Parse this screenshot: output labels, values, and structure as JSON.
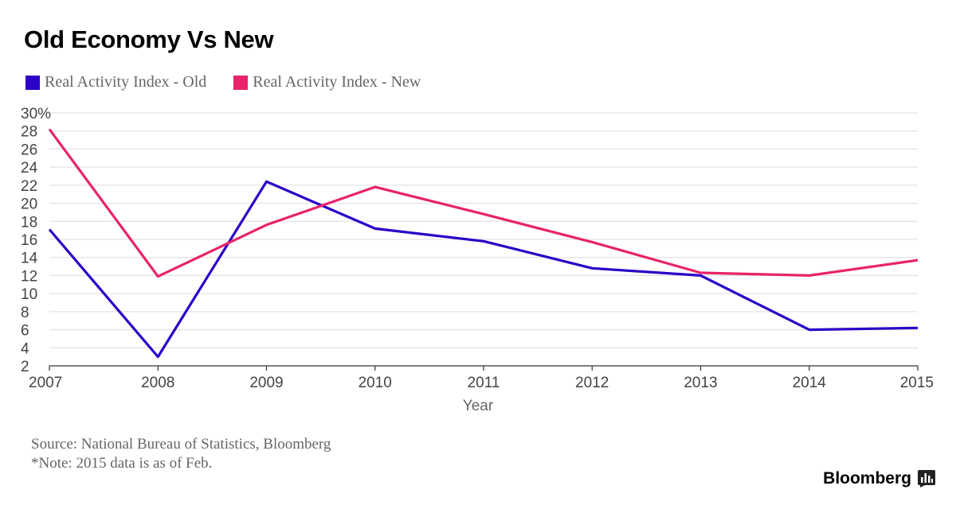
{
  "title": "Old Economy Vs New",
  "legend": [
    {
      "label": "Real Activity Index - Old",
      "color": "#2b00c8"
    },
    {
      "label": "Real Activity Index - New",
      "color": "#e8236b"
    }
  ],
  "source_lines": [
    "Source: National Bureau of Statistics, Bloomberg",
    "*Note: 2015 data is as of Feb."
  ],
  "brand": "Bloomberg",
  "chart_data": {
    "type": "line",
    "title": "Old Economy Vs New",
    "xlabel": "Year",
    "ylabel": "",
    "x": [
      "2007",
      "2008",
      "2009",
      "2010",
      "2011",
      "2012",
      "2013",
      "2014",
      "2015"
    ],
    "ylim": [
      2,
      30
    ],
    "y_ticks": [
      "30%",
      "28",
      "26",
      "24",
      "22",
      "20",
      "18",
      "16",
      "14",
      "12",
      "10",
      "8",
      "6",
      "4",
      "2"
    ],
    "y_tick_values": [
      30,
      28,
      26,
      24,
      22,
      20,
      18,
      16,
      14,
      12,
      10,
      8,
      6,
      4,
      2
    ],
    "grid": true,
    "legend_position": "top-left",
    "series": [
      {
        "name": "Real Activity Index - Old",
        "color": "#2b00c8",
        "values": [
          17.1,
          3.0,
          22.4,
          17.2,
          15.8,
          12.8,
          12.0,
          6.0,
          6.2
        ]
      },
      {
        "name": "Real Activity Index - New",
        "color": "#e8236b",
        "values": [
          28.2,
          11.9,
          17.6,
          21.8,
          18.8,
          15.7,
          12.3,
          12.0,
          13.7
        ]
      }
    ]
  }
}
